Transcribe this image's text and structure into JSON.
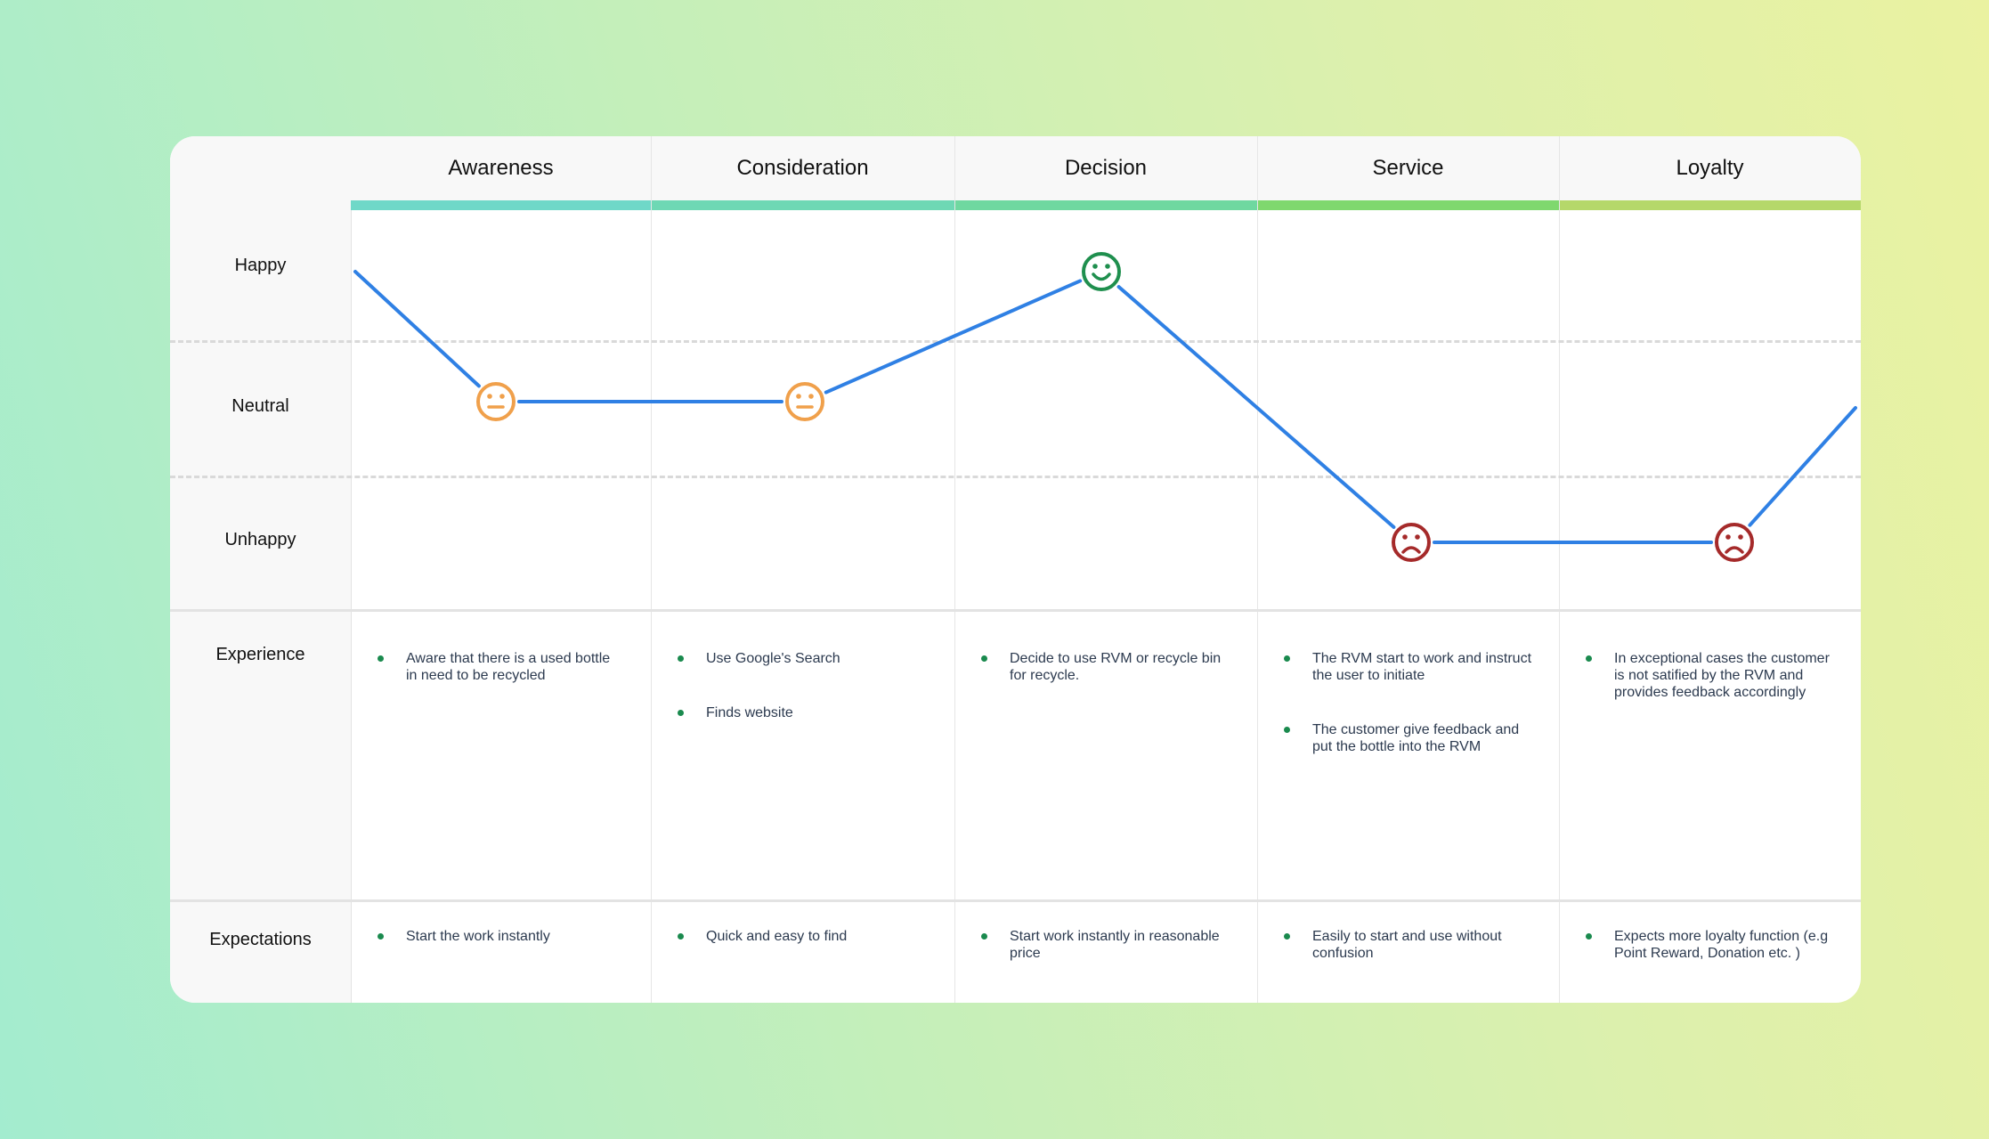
{
  "phases": [
    "Awareness",
    "Consideration",
    "Decision",
    "Service",
    "Loyalty"
  ],
  "phase_colors": [
    "#6fd8c8",
    "#6ed8b4",
    "#6fd8a0",
    "#7fd86e",
    "#b5d86a"
  ],
  "emotion_levels": [
    "Happy",
    "Neutral",
    "Unhappy"
  ],
  "rows": {
    "experience_label": "Experience",
    "expectations_label": "Expectations"
  },
  "emotion_points": [
    {
      "phase": "Awareness",
      "emotion": "Neutral",
      "icon": "neutral-face-icon"
    },
    {
      "phase": "Consideration",
      "emotion": "Neutral",
      "icon": "neutral-face-icon"
    },
    {
      "phase": "Decision",
      "emotion": "Happy",
      "icon": "smiley-face-icon"
    },
    {
      "phase": "Service",
      "emotion": "Unhappy",
      "icon": "sad-face-icon"
    },
    {
      "phase": "Loyalty",
      "emotion": "Unhappy",
      "icon": "sad-face-icon"
    }
  ],
  "colors": {
    "line": "#2f80e4",
    "neutral": "#f0a04b",
    "happy": "#1f8f4e",
    "unhappy": "#a52a2a",
    "bullet": "#1a8a4e"
  },
  "experience": [
    [
      "Aware that there is a used bottle in need to be recycled"
    ],
    [
      "Use Google's Search",
      "Finds website"
    ],
    [
      "Decide to use RVM or recycle bin for recycle."
    ],
    [
      "The RVM start to work and instruct the user to initiate",
      "The customer give feedback and put the bottle into the RVM"
    ],
    [
      "In exceptional cases the customer is not satified by the RVM and provides feedback accordingly"
    ]
  ],
  "expectations": [
    [
      "Start the work instantly"
    ],
    [
      "Quick and easy to find"
    ],
    [
      "Start work instantly in reasonable price"
    ],
    [
      "Easily to start and use without confusion"
    ],
    [
      "Expects more loyalty function (e.g Point Reward, Donation etc. )"
    ]
  ]
}
